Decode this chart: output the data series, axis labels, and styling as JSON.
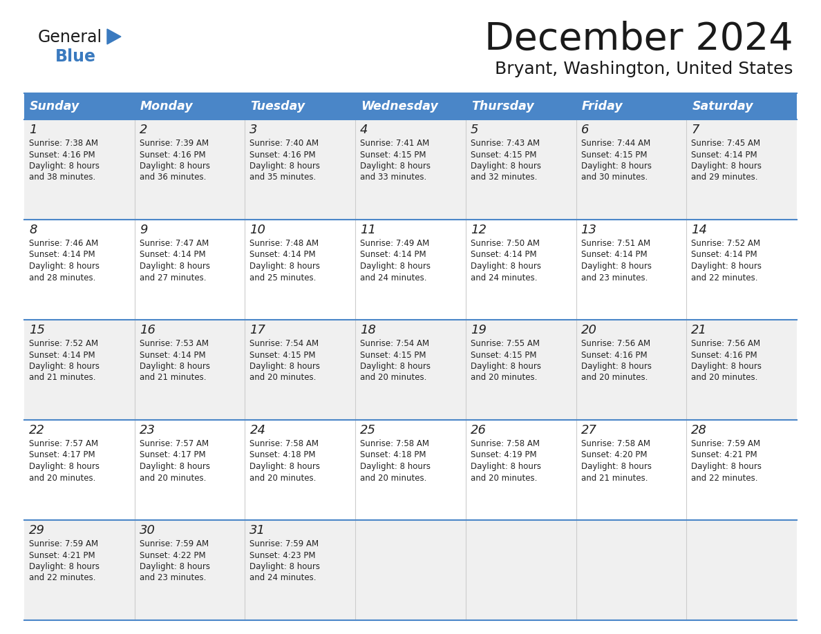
{
  "title": "December 2024",
  "subtitle": "Bryant, Washington, United States",
  "header_bg": "#4a86c8",
  "header_text_color": "#ffffff",
  "cell_bg_odd": "#f0f0f0",
  "cell_bg_even": "#ffffff",
  "border_color": "#4a86c8",
  "day_names": [
    "Sunday",
    "Monday",
    "Tuesday",
    "Wednesday",
    "Thursday",
    "Friday",
    "Saturday"
  ],
  "days": [
    {
      "day": 1,
      "col": 0,
      "row": 0,
      "sunrise": "7:38 AM",
      "sunset": "4:16 PM",
      "daylight_h": "8 hours",
      "daylight_m": "38 minutes."
    },
    {
      "day": 2,
      "col": 1,
      "row": 0,
      "sunrise": "7:39 AM",
      "sunset": "4:16 PM",
      "daylight_h": "8 hours",
      "daylight_m": "36 minutes."
    },
    {
      "day": 3,
      "col": 2,
      "row": 0,
      "sunrise": "7:40 AM",
      "sunset": "4:16 PM",
      "daylight_h": "8 hours",
      "daylight_m": "35 minutes."
    },
    {
      "day": 4,
      "col": 3,
      "row": 0,
      "sunrise": "7:41 AM",
      "sunset": "4:15 PM",
      "daylight_h": "8 hours",
      "daylight_m": "33 minutes."
    },
    {
      "day": 5,
      "col": 4,
      "row": 0,
      "sunrise": "7:43 AM",
      "sunset": "4:15 PM",
      "daylight_h": "8 hours",
      "daylight_m": "32 minutes."
    },
    {
      "day": 6,
      "col": 5,
      "row": 0,
      "sunrise": "7:44 AM",
      "sunset": "4:15 PM",
      "daylight_h": "8 hours",
      "daylight_m": "30 minutes."
    },
    {
      "day": 7,
      "col": 6,
      "row": 0,
      "sunrise": "7:45 AM",
      "sunset": "4:14 PM",
      "daylight_h": "8 hours",
      "daylight_m": "29 minutes."
    },
    {
      "day": 8,
      "col": 0,
      "row": 1,
      "sunrise": "7:46 AM",
      "sunset": "4:14 PM",
      "daylight_h": "8 hours",
      "daylight_m": "28 minutes."
    },
    {
      "day": 9,
      "col": 1,
      "row": 1,
      "sunrise": "7:47 AM",
      "sunset": "4:14 PM",
      "daylight_h": "8 hours",
      "daylight_m": "27 minutes."
    },
    {
      "day": 10,
      "col": 2,
      "row": 1,
      "sunrise": "7:48 AM",
      "sunset": "4:14 PM",
      "daylight_h": "8 hours",
      "daylight_m": "25 minutes."
    },
    {
      "day": 11,
      "col": 3,
      "row": 1,
      "sunrise": "7:49 AM",
      "sunset": "4:14 PM",
      "daylight_h": "8 hours",
      "daylight_m": "24 minutes."
    },
    {
      "day": 12,
      "col": 4,
      "row": 1,
      "sunrise": "7:50 AM",
      "sunset": "4:14 PM",
      "daylight_h": "8 hours",
      "daylight_m": "24 minutes."
    },
    {
      "day": 13,
      "col": 5,
      "row": 1,
      "sunrise": "7:51 AM",
      "sunset": "4:14 PM",
      "daylight_h": "8 hours",
      "daylight_m": "23 minutes."
    },
    {
      "day": 14,
      "col": 6,
      "row": 1,
      "sunrise": "7:52 AM",
      "sunset": "4:14 PM",
      "daylight_h": "8 hours",
      "daylight_m": "22 minutes."
    },
    {
      "day": 15,
      "col": 0,
      "row": 2,
      "sunrise": "7:52 AM",
      "sunset": "4:14 PM",
      "daylight_h": "8 hours",
      "daylight_m": "21 minutes."
    },
    {
      "day": 16,
      "col": 1,
      "row": 2,
      "sunrise": "7:53 AM",
      "sunset": "4:14 PM",
      "daylight_h": "8 hours",
      "daylight_m": "21 minutes."
    },
    {
      "day": 17,
      "col": 2,
      "row": 2,
      "sunrise": "7:54 AM",
      "sunset": "4:15 PM",
      "daylight_h": "8 hours",
      "daylight_m": "20 minutes."
    },
    {
      "day": 18,
      "col": 3,
      "row": 2,
      "sunrise": "7:54 AM",
      "sunset": "4:15 PM",
      "daylight_h": "8 hours",
      "daylight_m": "20 minutes."
    },
    {
      "day": 19,
      "col": 4,
      "row": 2,
      "sunrise": "7:55 AM",
      "sunset": "4:15 PM",
      "daylight_h": "8 hours",
      "daylight_m": "20 minutes."
    },
    {
      "day": 20,
      "col": 5,
      "row": 2,
      "sunrise": "7:56 AM",
      "sunset": "4:16 PM",
      "daylight_h": "8 hours",
      "daylight_m": "20 minutes."
    },
    {
      "day": 21,
      "col": 6,
      "row": 2,
      "sunrise": "7:56 AM",
      "sunset": "4:16 PM",
      "daylight_h": "8 hours",
      "daylight_m": "20 minutes."
    },
    {
      "day": 22,
      "col": 0,
      "row": 3,
      "sunrise": "7:57 AM",
      "sunset": "4:17 PM",
      "daylight_h": "8 hours",
      "daylight_m": "20 minutes."
    },
    {
      "day": 23,
      "col": 1,
      "row": 3,
      "sunrise": "7:57 AM",
      "sunset": "4:17 PM",
      "daylight_h": "8 hours",
      "daylight_m": "20 minutes."
    },
    {
      "day": 24,
      "col": 2,
      "row": 3,
      "sunrise": "7:58 AM",
      "sunset": "4:18 PM",
      "daylight_h": "8 hours",
      "daylight_m": "20 minutes."
    },
    {
      "day": 25,
      "col": 3,
      "row": 3,
      "sunrise": "7:58 AM",
      "sunset": "4:18 PM",
      "daylight_h": "8 hours",
      "daylight_m": "20 minutes."
    },
    {
      "day": 26,
      "col": 4,
      "row": 3,
      "sunrise": "7:58 AM",
      "sunset": "4:19 PM",
      "daylight_h": "8 hours",
      "daylight_m": "20 minutes."
    },
    {
      "day": 27,
      "col": 5,
      "row": 3,
      "sunrise": "7:58 AM",
      "sunset": "4:20 PM",
      "daylight_h": "8 hours",
      "daylight_m": "21 minutes."
    },
    {
      "day": 28,
      "col": 6,
      "row": 3,
      "sunrise": "7:59 AM",
      "sunset": "4:21 PM",
      "daylight_h": "8 hours",
      "daylight_m": "22 minutes."
    },
    {
      "day": 29,
      "col": 0,
      "row": 4,
      "sunrise": "7:59 AM",
      "sunset": "4:21 PM",
      "daylight_h": "8 hours",
      "daylight_m": "22 minutes."
    },
    {
      "day": 30,
      "col": 1,
      "row": 4,
      "sunrise": "7:59 AM",
      "sunset": "4:22 PM",
      "daylight_h": "8 hours",
      "daylight_m": "23 minutes."
    },
    {
      "day": 31,
      "col": 2,
      "row": 4,
      "sunrise": "7:59 AM",
      "sunset": "4:23 PM",
      "daylight_h": "8 hours",
      "daylight_m": "24 minutes."
    }
  ]
}
